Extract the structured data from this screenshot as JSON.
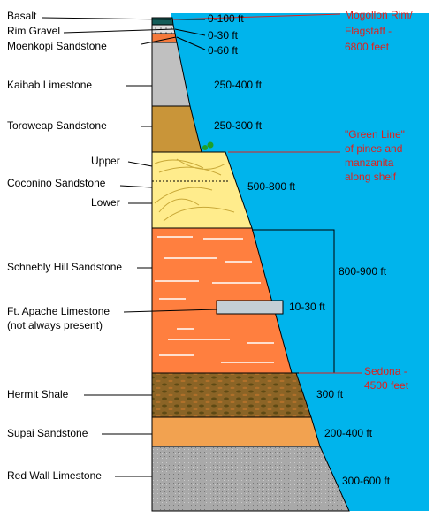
{
  "layers": [
    {
      "name": "Basalt",
      "thickness": "0-100 ft"
    },
    {
      "name": "Rim Gravel",
      "thickness": "0-30 ft"
    },
    {
      "name": "Moenkopi Sandstone",
      "thickness": "0-60 ft"
    },
    {
      "name": "Kaibab Limestone",
      "thickness": "250-400 ft"
    },
    {
      "name": "Toroweap Sandstone",
      "thickness": "250-300 ft"
    },
    {
      "name": "Coconino Sandstone",
      "thickness": "500-800 ft",
      "parts": [
        "Upper",
        "Lower"
      ]
    },
    {
      "name": "Schnebly Hill Sandstone",
      "thickness": "800-900 ft"
    },
    {
      "name": "Ft. Apache Limestone",
      "note": "(not always present)",
      "thickness": "10-30 ft"
    },
    {
      "name": "Hermit Shale",
      "thickness": "300 ft"
    },
    {
      "name": "Supai Sandstone",
      "thickness": "200-400 ft"
    },
    {
      "name": "Red Wall Limestone",
      "thickness": "300-600 ft"
    }
  ],
  "annotations": {
    "mogollon": [
      "Mogollon Rim/",
      "Flagstaff -",
      "6800 feet"
    ],
    "green_line": [
      "\"Green Line\"",
      "of pines and",
      "manzanita",
      "along shelf"
    ],
    "sedona": [
      "Sedona -",
      "4500 feet"
    ]
  }
}
